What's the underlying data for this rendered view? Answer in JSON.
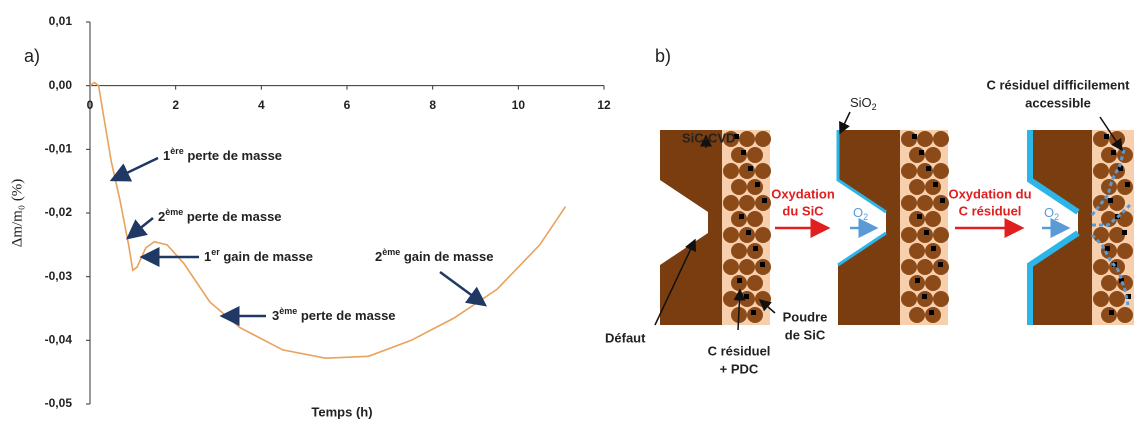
{
  "chart_data": {
    "type": "line",
    "panel": "a)",
    "x_label": "Temps (h)",
    "y_label": "Δm/m₀ (%)",
    "color": "#e8a25c",
    "x": [
      0,
      0.1,
      0.2,
      0.3,
      0.5,
      0.7,
      0.9,
      1.0,
      1.1,
      1.3,
      1.5,
      1.8,
      2.2,
      2.8,
      3.5,
      4.5,
      5.5,
      6.5,
      7.5,
      8.5,
      9.5,
      10.5,
      11.1
    ],
    "values": [
      0,
      0.0005,
      0,
      -0.004,
      -0.012,
      -0.018,
      -0.025,
      -0.029,
      -0.0285,
      -0.0255,
      -0.0245,
      -0.025,
      -0.028,
      -0.034,
      -0.038,
      -0.0415,
      -0.0428,
      -0.0425,
      -0.04,
      -0.0365,
      -0.032,
      -0.025,
      -0.019
    ],
    "xlim": [
      0,
      12
    ],
    "xticks": [
      0,
      2,
      4,
      6,
      8,
      10,
      12
    ],
    "ylim": [
      -0.05,
      0.01
    ],
    "yticks": [
      {
        "value": 0.01,
        "label": "0,01"
      },
      {
        "value": 0,
        "label": "0,00"
      },
      {
        "value": -0.01,
        "label": "-0,01"
      },
      {
        "value": -0.02,
        "label": "-0,02"
      },
      {
        "value": -0.03,
        "label": "-0,03"
      },
      {
        "value": -0.04,
        "label": "-0,04"
      },
      {
        "value": -0.05,
        "label": "-0,05"
      }
    ],
    "annotations": [
      {
        "parts": [
          "1",
          "ère",
          " perte de masse"
        ]
      },
      {
        "parts": [
          "2",
          "ème",
          " perte de masse"
        ]
      },
      {
        "parts": [
          "1",
          "er",
          " gain de masse"
        ]
      },
      {
        "parts": [
          "2",
          "ème",
          " gain de masse"
        ]
      },
      {
        "parts": [
          "3",
          "ème",
          " perte de masse"
        ]
      }
    ]
  },
  "diagram": {
    "panel": "b)",
    "sic_cvd": "SiC-CVD",
    "defaut": "Défaut",
    "c_residuel_pdc": [
      "C résiduel",
      "+ PDC"
    ],
    "poudre": [
      "Poudre",
      "de SiC"
    ],
    "sio2": [
      "SiO",
      "2"
    ],
    "ox1": [
      "Oxydation",
      "du SiC"
    ],
    "o2a": [
      "O",
      "2"
    ],
    "ox2": [
      "Oxydation du",
      "C résiduel"
    ],
    "o2b": [
      "O",
      "2"
    ],
    "c_diff": [
      "C résiduel difficilement",
      "accessible"
    ]
  }
}
